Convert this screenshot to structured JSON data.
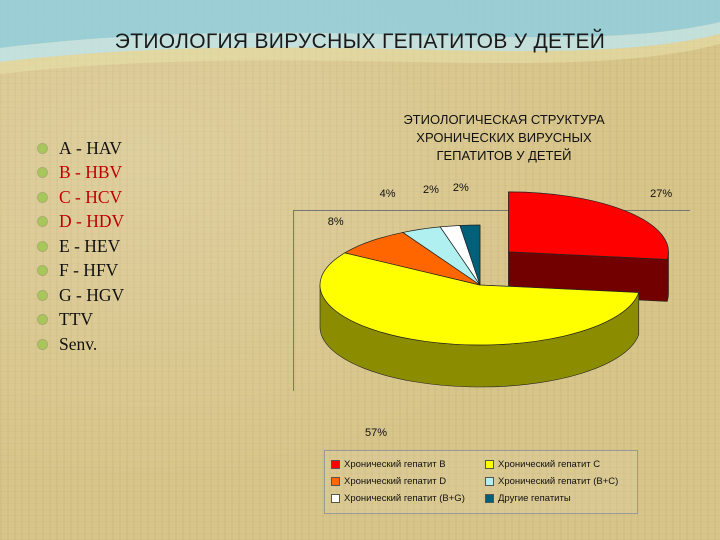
{
  "slide": {
    "title": "ЭТИОЛОГИЯ ВИРУСНЫХ ГЕПАТИТОВ У ДЕТЕЙ",
    "bullets": [
      "А - HAV",
      "B - HBV",
      "C - HCV",
      "D - HDV",
      "E - HEV",
      "F - HFV",
      "G - HGV",
      "TTV",
      "Senv."
    ],
    "bullet_colors": [
      "#111111",
      "#c00000",
      "#c00000",
      "#c00000",
      "#111111",
      "#111111",
      "#111111",
      "#111111",
      "#111111"
    ],
    "background_color": "#d8c58a",
    "bullet_marker_color": "#a6c85a"
  },
  "chart_data": {
    "type": "pie",
    "title_lines": [
      "ЭТИОЛОГИЧЕСКАЯ СТРУКТУРА",
      "ХРОНИЧЕСКИХ ВИРУСНЫХ",
      "ГЕПАТИТОВ У ДЕТЕЙ"
    ],
    "slices": [
      {
        "label": "Хронический гепатит B",
        "value": 27,
        "value_label": "27%",
        "color": "#ff0000",
        "exploded": true
      },
      {
        "label": "Хронический гепатит C",
        "value": 57,
        "value_label": "57%",
        "color": "#ffff00",
        "exploded": false
      },
      {
        "label": "Хронический гепатит D",
        "value": 8,
        "value_label": "8%",
        "color": "#ff6600",
        "exploded": false
      },
      {
        "label": "Хронический гепатит (B+C)",
        "value": 4,
        "value_label": "4%",
        "color": "#b0f0f0",
        "exploded": false
      },
      {
        "label": "Хронический гепатит (B+G)",
        "value": 2,
        "value_label": "2%",
        "color": "#ffffff",
        "exploded": false
      },
      {
        "label": "Другие гепатиты",
        "value": 2,
        "value_label": "2%",
        "color": "#00607a",
        "exploded": false
      }
    ],
    "legend_placement": "bottom"
  }
}
